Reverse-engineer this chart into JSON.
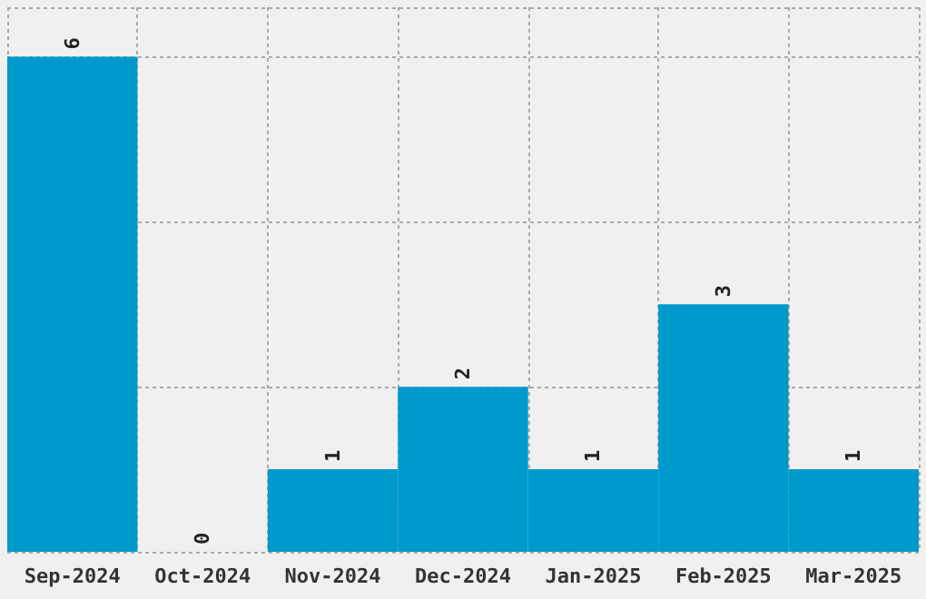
{
  "chart_data": {
    "type": "bar",
    "categories": [
      "Sep-2024",
      "Oct-2024",
      "Nov-2024",
      "Dec-2024",
      "Jan-2025",
      "Feb-2025",
      "Mar-2025"
    ],
    "values": [
      6,
      0,
      1,
      2,
      1,
      3,
      1
    ],
    "color": "#0099cc",
    "data_labels": true,
    "grid": true,
    "tick_labels": "x"
  }
}
